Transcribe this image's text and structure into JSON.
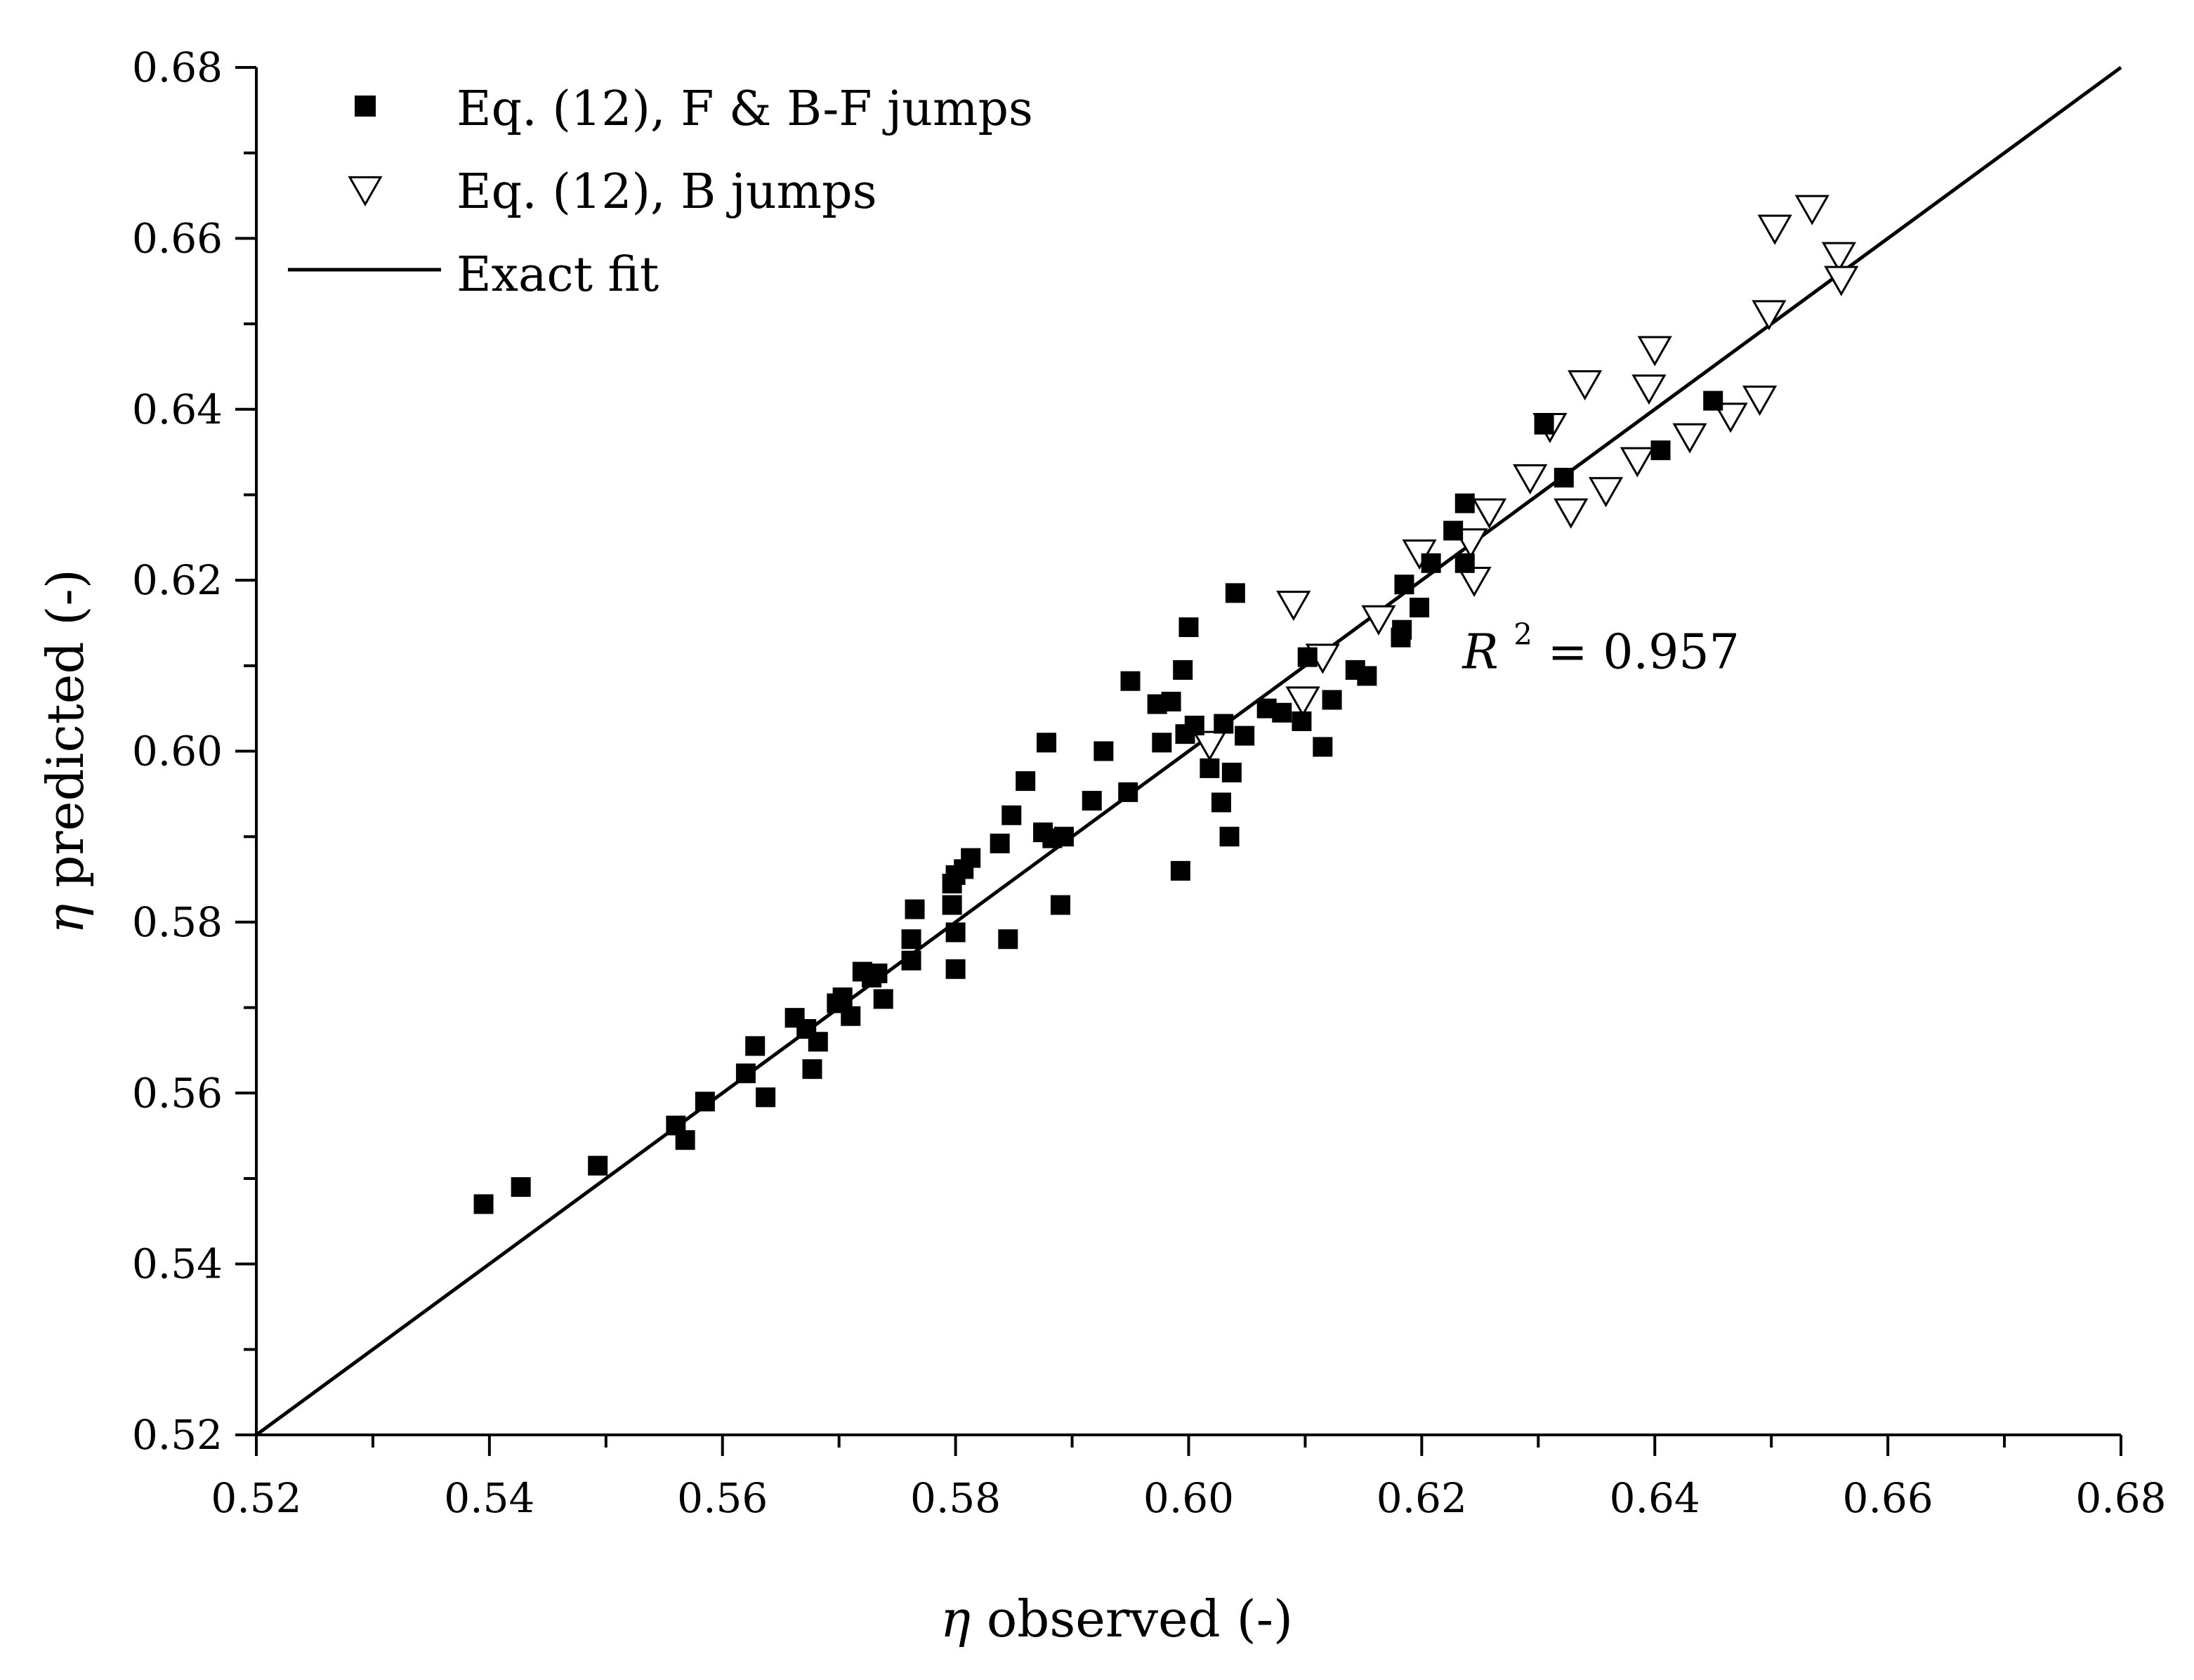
{
  "chart_data": {
    "type": "scatter",
    "xlabel": "observed (-)",
    "ylabel": "predicted (-)",
    "axis_symbol": "η",
    "xlim": [
      0.52,
      0.68
    ],
    "ylim": [
      0.52,
      0.68
    ],
    "xticks": [
      "0.52",
      "0.54",
      "0.56",
      "0.58",
      "0.60",
      "0.62",
      "0.64",
      "0.66",
      "0.68"
    ],
    "yticks": [
      "0.52",
      "0.54",
      "0.56",
      "0.58",
      "0.60",
      "0.62",
      "0.64",
      "0.66",
      "0.68"
    ],
    "grid": false,
    "legend_position": "top-left",
    "series": [
      {
        "name": "Eq. (12), F & B-F jumps",
        "marker": "filled-square",
        "color": "#000000",
        "points": [
          [
            0.5395,
            0.547
          ],
          [
            0.5427,
            0.549
          ],
          [
            0.5493,
            0.5515
          ],
          [
            0.556,
            0.5562
          ],
          [
            0.5568,
            0.5545
          ],
          [
            0.5585,
            0.559
          ],
          [
            0.562,
            0.5623
          ],
          [
            0.5628,
            0.5655
          ],
          [
            0.5637,
            0.5595
          ],
          [
            0.5662,
            0.5688
          ],
          [
            0.5672,
            0.5675
          ],
          [
            0.5677,
            0.5628
          ],
          [
            0.5682,
            0.566
          ],
          [
            0.5698,
            0.5705
          ],
          [
            0.5703,
            0.5712
          ],
          [
            0.571,
            0.569
          ],
          [
            0.572,
            0.5742
          ],
          [
            0.5728,
            0.5735
          ],
          [
            0.5733,
            0.574
          ],
          [
            0.5738,
            0.571
          ],
          [
            0.5762,
            0.5755
          ],
          [
            0.5762,
            0.578
          ],
          [
            0.5765,
            0.5815
          ],
          [
            0.5797,
            0.5845
          ],
          [
            0.5797,
            0.582
          ],
          [
            0.58,
            0.5745
          ],
          [
            0.58,
            0.5788
          ],
          [
            0.58,
            0.5855
          ],
          [
            0.5807,
            0.5862
          ],
          [
            0.5813,
            0.5875
          ],
          [
            0.5838,
            0.5892
          ],
          [
            0.5845,
            0.578
          ],
          [
            0.5848,
            0.5925
          ],
          [
            0.586,
            0.5965
          ],
          [
            0.5875,
            0.5905
          ],
          [
            0.5878,
            0.601
          ],
          [
            0.5883,
            0.5898
          ],
          [
            0.589,
            0.582
          ],
          [
            0.5893,
            0.59
          ],
          [
            0.5917,
            0.5942
          ],
          [
            0.5927,
            0.6
          ],
          [
            0.5948,
            0.5952
          ],
          [
            0.595,
            0.6082
          ],
          [
            0.5973,
            0.6055
          ],
          [
            0.5977,
            0.601
          ],
          [
            0.5985,
            0.6058
          ],
          [
            0.5993,
            0.586
          ],
          [
            0.5995,
            0.6095
          ],
          [
            0.5997,
            0.602
          ],
          [
            0.6,
            0.6145
          ],
          [
            0.6005,
            0.603
          ],
          [
            0.6018,
            0.598
          ],
          [
            0.6028,
            0.594
          ],
          [
            0.603,
            0.6032
          ],
          [
            0.6035,
            0.59
          ],
          [
            0.6037,
            0.5975
          ],
          [
            0.604,
            0.6185
          ],
          [
            0.6048,
            0.6018
          ],
          [
            0.6067,
            0.605
          ],
          [
            0.608,
            0.6045
          ],
          [
            0.6097,
            0.6035
          ],
          [
            0.6102,
            0.611
          ],
          [
            0.6115,
            0.6005
          ],
          [
            0.6123,
            0.606
          ],
          [
            0.6143,
            0.6095
          ],
          [
            0.6153,
            0.6088
          ],
          [
            0.6182,
            0.6133
          ],
          [
            0.6183,
            0.6142
          ],
          [
            0.6185,
            0.6195
          ],
          [
            0.6198,
            0.6168
          ],
          [
            0.6208,
            0.622
          ],
          [
            0.6227,
            0.6258
          ],
          [
            0.6237,
            0.629
          ],
          [
            0.6237,
            0.622
          ],
          [
            0.6305,
            0.6382
          ],
          [
            0.6322,
            0.632
          ],
          [
            0.6405,
            0.6352
          ],
          [
            0.645,
            0.641
          ]
        ]
      },
      {
        "name": "Eq. (12), B jumps",
        "marker": "open-triangle-down",
        "color": "#000000",
        "points": [
          [
            0.6018,
            0.6008
          ],
          [
            0.609,
            0.6172
          ],
          [
            0.6098,
            0.606
          ],
          [
            0.6115,
            0.611
          ],
          [
            0.6163,
            0.6155
          ],
          [
            0.6198,
            0.6232
          ],
          [
            0.6242,
            0.6245
          ],
          [
            0.6245,
            0.62
          ],
          [
            0.6258,
            0.628
          ],
          [
            0.6293,
            0.632
          ],
          [
            0.631,
            0.638
          ],
          [
            0.6328,
            0.628
          ],
          [
            0.634,
            0.643
          ],
          [
            0.6358,
            0.6305
          ],
          [
            0.6385,
            0.634
          ],
          [
            0.6395,
            0.6425
          ],
          [
            0.64,
            0.647
          ],
          [
            0.643,
            0.6368
          ],
          [
            0.6465,
            0.6392
          ],
          [
            0.649,
            0.6412
          ],
          [
            0.6498,
            0.6512
          ],
          [
            0.6503,
            0.6612
          ],
          [
            0.6535,
            0.6635
          ],
          [
            0.6558,
            0.658
          ],
          [
            0.656,
            0.6552
          ]
        ]
      },
      {
        "name": "Exact fit",
        "marker": "line",
        "color": "#000000",
        "points": [
          [
            0.52,
            0.52
          ],
          [
            0.68,
            0.68
          ]
        ]
      }
    ],
    "annotations": [
      {
        "text": "R",
        "superscript": "2",
        "value_text": " = 0.957",
        "x": 0.6235,
        "y": 0.6097
      }
    ]
  }
}
